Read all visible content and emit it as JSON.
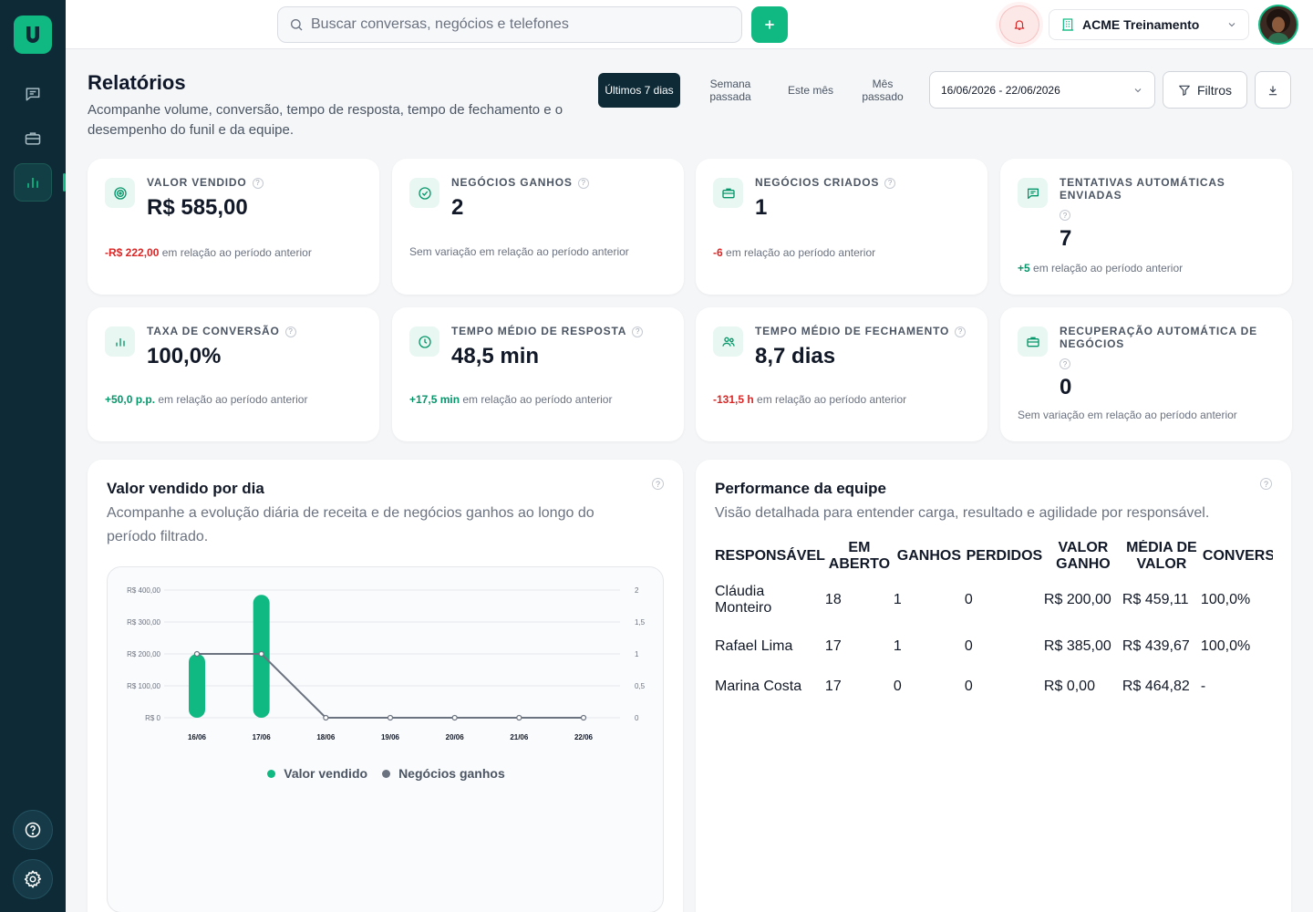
{
  "app": {
    "logo_letter": "U"
  },
  "sidebar": {
    "items": [
      {
        "name": "conversations",
        "icon": "chat-icon"
      },
      {
        "name": "deals",
        "icon": "briefcase-icon"
      },
      {
        "name": "reports",
        "icon": "bar-chart-icon",
        "active": true
      }
    ],
    "help_icon": "help-icon",
    "settings_icon": "gear-icon"
  },
  "topbar": {
    "search_placeholder": "Buscar conversas, negócios e telefones",
    "organization": "ACME Treinamento"
  },
  "page": {
    "title": "Relatórios",
    "subtitle": "Acompanhe volume, conversão, tempo de resposta, tempo de fechamento e o desempenho do funil e da equipe.",
    "periods": [
      "Últimos 7 dias",
      "Semana passada",
      "Este mês",
      "Mês passado"
    ],
    "active_period": "Últimos 7 dias",
    "date_range": "16/06/2026 - 22/06/2026",
    "filters_label": "Filtros"
  },
  "kpis": [
    {
      "icon": "target-icon",
      "label": "VALOR VENDIDO",
      "value": "R$ 585,00",
      "delta": "-R$ 222,00",
      "delta_type": "neg",
      "suffix": "em relação ao período anterior"
    },
    {
      "icon": "check-circle-icon",
      "label": "NEGÓCIOS GANHOS",
      "value": "2",
      "delta": "",
      "delta_type": "none",
      "suffix": "Sem variação em relação ao período anterior"
    },
    {
      "icon": "briefcase-icon",
      "label": "NEGÓCIOS CRIADOS",
      "value": "1",
      "delta": "-6",
      "delta_type": "neg",
      "suffix": "em relação ao período anterior"
    },
    {
      "icon": "message-icon",
      "label": "TENTATIVAS AUTOMÁTICAS ENVIADAS",
      "value": "7",
      "delta": "+5",
      "delta_type": "pos",
      "suffix": "em relação ao período anterior"
    },
    {
      "icon": "bar-chart-icon",
      "label": "TAXA DE CONVERSÃO",
      "value": "100,0%",
      "delta": "+50,0 p.p.",
      "delta_type": "pos",
      "suffix": "em relação ao período anterior"
    },
    {
      "icon": "clock-icon",
      "label": "TEMPO MÉDIO DE RESPOSTA",
      "value": "48,5 min",
      "delta": "+17,5 min",
      "delta_type": "pos",
      "suffix": "em relação ao período anterior"
    },
    {
      "icon": "users-icon",
      "label": "TEMPO MÉDIO DE FECHAMENTO",
      "value": "8,7 dias",
      "delta": "-131,5 h",
      "delta_type": "neg",
      "suffix": "em relação ao período anterior"
    },
    {
      "icon": "briefcase-icon",
      "label": "RECUPERAÇÃO AUTOMÁTICA DE NEGÓCIOS",
      "value": "0",
      "delta": "",
      "delta_type": "none",
      "suffix": "Sem variação em relação ao período anterior"
    }
  ],
  "sales_panel": {
    "title": "Valor vendido por dia",
    "subtitle": "Acompanhe a evolução diária de receita e de negócios ganhos ao longo do período filtrado."
  },
  "chart_data": {
    "type": "bar",
    "categories": [
      "16/06",
      "17/06",
      "18/06",
      "19/06",
      "20/06",
      "21/06",
      "22/06"
    ],
    "series": [
      {
        "name": "Valor vendido",
        "type": "bar",
        "axis": "left",
        "color": "#10b981",
        "values": [
          200,
          385,
          0,
          0,
          0,
          0,
          0
        ]
      },
      {
        "name": "Negócios ganhos",
        "type": "line",
        "axis": "right",
        "color": "#6b7280",
        "values": [
          1,
          1,
          0,
          0,
          0,
          0,
          0
        ]
      }
    ],
    "y_left": {
      "ticks": [
        "R$ 0",
        "R$ 100,00",
        "R$ 200,00",
        "R$ 300,00",
        "R$ 400,00"
      ],
      "range": [
        0,
        400
      ]
    },
    "y_right": {
      "ticks": [
        "0",
        "0,5",
        "1",
        "1,5",
        "2"
      ],
      "range": [
        0,
        2
      ]
    },
    "legend_position": "bottom",
    "grid": true
  },
  "team_panel": {
    "title": "Performance da equipe",
    "subtitle": "Visão detalhada para entender carga, resultado e agilidade por responsável.",
    "columns": [
      "RESPONSÁVEL",
      "EM ABERTO",
      "GANHOS",
      "PERDIDOS",
      "VALOR GANHO",
      "MÉDIA DE VALOR",
      "CONVERSÃO"
    ],
    "rows": [
      {
        "name": "Cláudia Monteiro",
        "open": "18",
        "won": "1",
        "lost": "0",
        "won_value": "R$ 200,00",
        "avg_value": "R$ 459,11",
        "conversion": "100,0%"
      },
      {
        "name": "Rafael Lima",
        "open": "17",
        "won": "1",
        "lost": "0",
        "won_value": "R$ 385,00",
        "avg_value": "R$ 439,67",
        "conversion": "100,0%"
      },
      {
        "name": "Marina Costa",
        "open": "17",
        "won": "0",
        "lost": "0",
        "won_value": "R$ 0,00",
        "avg_value": "R$ 464,82",
        "conversion": "-"
      }
    ]
  },
  "colors": {
    "accent": "#10b981",
    "sidebar": "#0d2a36",
    "negative": "#dc2626",
    "positive": "#059669"
  }
}
